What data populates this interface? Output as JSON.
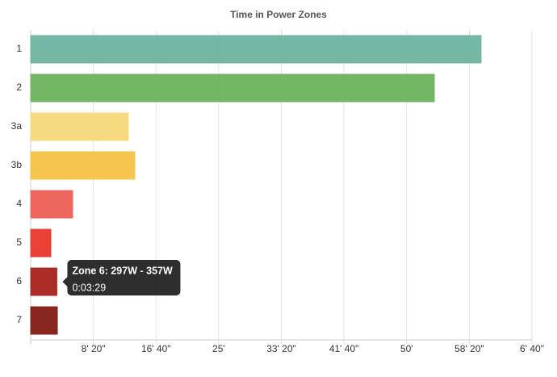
{
  "chart_data": {
    "type": "hbar",
    "title": "Time in Power Zones",
    "categories": [
      "1",
      "2",
      "3a",
      "3b",
      "4",
      "5",
      "6",
      "7"
    ],
    "values": [
      3594,
      3221,
      779,
      831,
      335,
      161,
      209,
      213
    ],
    "colors": [
      "#6db39f",
      "#6cb35d",
      "#f6d87a",
      "#f4c244",
      "#ec5f55",
      "#e9372b",
      "#a8221b",
      "#821a14"
    ],
    "xlim": [
      0,
      4000
    ],
    "xticks": [
      {
        "value": 500,
        "label": "8' 20\""
      },
      {
        "value": 1000,
        "label": "16' 40\""
      },
      {
        "value": 1500,
        "label": "25'"
      },
      {
        "value": 2000,
        "label": "33' 20\""
      },
      {
        "value": 2500,
        "label": "41' 40\""
      },
      {
        "value": 3000,
        "label": "50'"
      },
      {
        "value": 3500,
        "label": "58' 20\""
      },
      {
        "value": 4000,
        "label": "6' 40\""
      }
    ],
    "grid": true,
    "tooltip": {
      "title": "Zone 6: 297W - 357W",
      "text": "0:03:29"
    }
  }
}
